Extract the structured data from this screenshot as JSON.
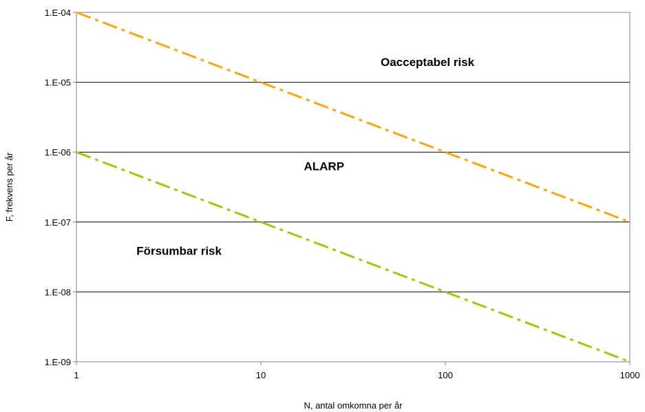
{
  "chart_data": {
    "type": "line",
    "xlabel": "N, antal omkomna per år",
    "ylabel": "F, frekvens per år",
    "x_scale": "log",
    "y_scale": "log",
    "xlim": [
      1,
      1000
    ],
    "ylim": [
      1e-09,
      0.0001
    ],
    "x_ticks": [
      {
        "value": 1,
        "label": "1"
      },
      {
        "value": 10,
        "label": "10"
      },
      {
        "value": 100,
        "label": "100"
      },
      {
        "value": 1000,
        "label": "1000"
      }
    ],
    "y_ticks": [
      {
        "value": 0.0001,
        "label": "1.E-04"
      },
      {
        "value": 1e-05,
        "label": "1.E-05"
      },
      {
        "value": 1e-06,
        "label": "1.E-06"
      },
      {
        "value": 1e-07,
        "label": "1.E-07"
      },
      {
        "value": 1e-08,
        "label": "1.E-08"
      },
      {
        "value": 1e-09,
        "label": "1.E-09"
      }
    ],
    "grid": "horizontal",
    "series": [
      {
        "x": [
          1,
          10,
          100,
          1000
        ],
        "y": [
          0.0001,
          1e-05,
          1e-06,
          1e-07
        ],
        "color": "#FFA500",
        "style": "dash-dot"
      },
      {
        "x": [
          1,
          10,
          100,
          1000
        ],
        "y": [
          1e-06,
          1e-07,
          1e-08,
          1e-09
        ],
        "color": "#99CC00",
        "style": "dash-dot"
      }
    ],
    "annotations": [
      {
        "text": "Oacceptabel risk",
        "x": 80,
        "y": 1.7e-05
      },
      {
        "text": "ALARP",
        "x": 22,
        "y": 5.5e-07
      },
      {
        "text": "Försumbar risk",
        "x": 3.6,
        "y": 3.4e-08
      }
    ]
  }
}
